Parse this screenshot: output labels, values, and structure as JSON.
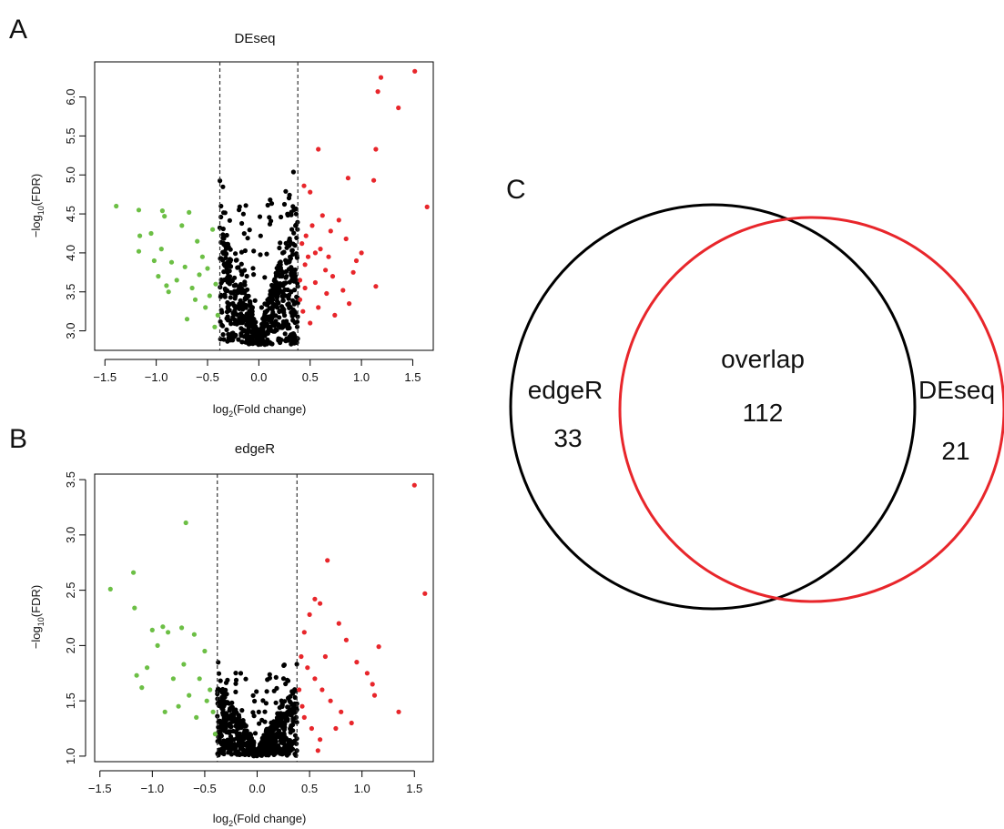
{
  "panels": {
    "a": {
      "letter": "A"
    },
    "b": {
      "letter": "B"
    },
    "c": {
      "letter": "C"
    }
  },
  "chart_data": [
    {
      "type": "scatter",
      "title": "DEseq",
      "xlabel": {
        "prefix": "log",
        "sub": "2",
        "suffix": "(Fold change)"
      },
      "ylabel": {
        "prefix": "−log",
        "sub": "10",
        "suffix": "(FDR)"
      },
      "xlim": [
        -1.6,
        1.7
      ],
      "ylim": [
        2.75,
        6.45
      ],
      "xticks": [
        -1.5,
        -1.0,
        -0.5,
        0.0,
        0.5,
        1.0,
        1.5
      ],
      "xtick_labels": [
        "−1.5",
        "−1.0",
        "−0.5",
        "0.0",
        "0.5",
        "1.0",
        "1.5"
      ],
      "yticks": [
        3.0,
        3.5,
        4.0,
        4.5,
        5.0,
        5.5,
        6.0
      ],
      "ytick_labels": [
        "3.0",
        "3.5",
        "4.0",
        "4.5",
        "5.0",
        "5.5",
        "6.0"
      ],
      "thresholds": [
        -0.38,
        0.38
      ],
      "grid": false,
      "series_colors": {
        "down": "#6cbf45",
        "up": "#e8262b",
        "ns": "#000000"
      },
      "up_points": [
        [
          1.52,
          6.33
        ],
        [
          1.19,
          6.25
        ],
        [
          1.16,
          6.07
        ],
        [
          1.36,
          5.86
        ],
        [
          0.58,
          5.33
        ],
        [
          1.14,
          5.33
        ],
        [
          0.87,
          4.96
        ],
        [
          1.12,
          4.93
        ],
        [
          1.64,
          4.59
        ],
        [
          0.44,
          4.86
        ],
        [
          0.5,
          4.78
        ],
        [
          1.14,
          3.57
        ],
        [
          0.42,
          4.12
        ],
        [
          0.46,
          4.22
        ],
        [
          0.52,
          4.35
        ],
        [
          0.6,
          4.05
        ],
        [
          0.7,
          4.28
        ],
        [
          0.78,
          4.42
        ],
        [
          0.85,
          4.18
        ],
        [
          0.95,
          3.9
        ],
        [
          0.65,
          3.78
        ],
        [
          0.55,
          3.62
        ],
        [
          0.45,
          3.55
        ],
        [
          0.48,
          3.95
        ],
        [
          0.72,
          3.7
        ],
        [
          0.82,
          3.52
        ],
        [
          0.92,
          3.75
        ],
        [
          1.0,
          4.0
        ],
        [
          0.62,
          4.48
        ],
        [
          0.4,
          3.4
        ],
        [
          0.43,
          3.25
        ],
        [
          0.5,
          3.1
        ],
        [
          0.58,
          3.3
        ],
        [
          0.66,
          3.48
        ],
        [
          0.74,
          3.2
        ],
        [
          0.88,
          3.35
        ],
        [
          0.4,
          3.65
        ],
        [
          0.45,
          3.85
        ],
        [
          0.55,
          4.0
        ],
        [
          0.68,
          3.95
        ]
      ],
      "down_points": [
        [
          -1.39,
          4.6
        ],
        [
          -1.17,
          4.55
        ],
        [
          -1.16,
          4.22
        ],
        [
          -1.17,
          4.02
        ],
        [
          -0.94,
          4.54
        ],
        [
          -0.92,
          4.47
        ],
        [
          -1.05,
          4.25
        ],
        [
          -0.95,
          4.05
        ],
        [
          -0.85,
          3.88
        ],
        [
          -0.75,
          4.35
        ],
        [
          -0.68,
          4.52
        ],
        [
          -0.6,
          4.15
        ],
        [
          -0.55,
          3.95
        ],
        [
          -0.5,
          3.8
        ],
        [
          -0.45,
          4.3
        ],
        [
          -0.42,
          3.6
        ],
        [
          -0.48,
          3.45
        ],
        [
          -0.58,
          3.72
        ],
        [
          -0.65,
          3.55
        ],
        [
          -0.72,
          3.82
        ],
        [
          -0.8,
          3.65
        ],
        [
          -0.88,
          3.5
        ],
        [
          -0.98,
          3.7
        ],
        [
          -1.02,
          3.9
        ],
        [
          -0.4,
          3.2
        ],
        [
          -0.43,
          3.05
        ],
        [
          -0.52,
          3.3
        ],
        [
          -0.62,
          3.4
        ],
        [
          -0.7,
          3.15
        ],
        [
          -0.9,
          3.58
        ]
      ],
      "ns_cloud": {
        "count": 700,
        "xrange": [
          -0.38,
          0.38
        ],
        "ybase": 2.82,
        "ytop": 5.5,
        "seed": 11
      }
    },
    {
      "type": "scatter",
      "title": "edgeR",
      "xlabel": {
        "prefix": "log",
        "sub": "2",
        "suffix": "(Fold change)"
      },
      "ylabel": {
        "prefix": "−log",
        "sub": "10",
        "suffix": "(FDR)"
      },
      "xlim": [
        -1.55,
        1.68
      ],
      "ylim": [
        0.95,
        3.55
      ],
      "xticks": [
        -1.5,
        -1.0,
        -0.5,
        0.0,
        0.5,
        1.0,
        1.5
      ],
      "xtick_labels": [
        "−1.5",
        "−1.0",
        "−0.5",
        "0.0",
        "0.5",
        "1.0",
        "1.5"
      ],
      "yticks": [
        1.0,
        1.5,
        2.0,
        2.5,
        3.0,
        3.5
      ],
      "ytick_labels": [
        "1.0",
        "1.5",
        "2.0",
        "2.5",
        "3.0",
        "3.5"
      ],
      "thresholds": [
        -0.38,
        0.38
      ],
      "grid": false,
      "series_colors": {
        "down": "#6cbf45",
        "up": "#e8262b",
        "ns": "#000000"
      },
      "up_points": [
        [
          1.5,
          3.45
        ],
        [
          1.6,
          2.47
        ],
        [
          0.67,
          2.77
        ],
        [
          1.16,
          1.99
        ],
        [
          1.35,
          1.4
        ],
        [
          0.55,
          2.42
        ],
        [
          0.6,
          2.38
        ],
        [
          0.5,
          2.28
        ],
        [
          0.78,
          2.2
        ],
        [
          0.85,
          2.05
        ],
        [
          0.95,
          1.85
        ],
        [
          1.05,
          1.75
        ],
        [
          1.1,
          1.65
        ],
        [
          1.12,
          1.55
        ],
        [
          0.45,
          2.12
        ],
        [
          0.42,
          1.9
        ],
        [
          0.48,
          1.8
        ],
        [
          0.55,
          1.7
        ],
        [
          0.62,
          1.6
        ],
        [
          0.7,
          1.5
        ],
        [
          0.8,
          1.4
        ],
        [
          0.9,
          1.3
        ],
        [
          0.45,
          1.35
        ],
        [
          0.52,
          1.25
        ],
        [
          0.6,
          1.15
        ],
        [
          0.4,
          1.6
        ],
        [
          0.43,
          1.45
        ],
        [
          0.58,
          1.05
        ],
        [
          0.75,
          1.25
        ],
        [
          0.65,
          1.9
        ]
      ],
      "down_points": [
        [
          -1.4,
          2.51
        ],
        [
          -1.18,
          2.66
        ],
        [
          -0.68,
          3.11
        ],
        [
          -1.17,
          2.34
        ],
        [
          -1.0,
          2.14
        ],
        [
          -0.9,
          2.17
        ],
        [
          -0.85,
          2.12
        ],
        [
          -0.72,
          2.16
        ],
        [
          -0.6,
          2.1
        ],
        [
          -0.95,
          2.0
        ],
        [
          -1.05,
          1.8
        ],
        [
          -0.8,
          1.7
        ],
        [
          -0.7,
          1.83
        ],
        [
          -0.55,
          1.7
        ],
        [
          -0.5,
          1.95
        ],
        [
          -0.45,
          1.6
        ],
        [
          -0.42,
          1.4
        ],
        [
          -0.48,
          1.5
        ],
        [
          -0.58,
          1.35
        ],
        [
          -0.65,
          1.55
        ],
        [
          -0.75,
          1.45
        ],
        [
          -0.88,
          1.4
        ],
        [
          -1.1,
          1.62
        ],
        [
          -1.15,
          1.73
        ],
        [
          -0.4,
          1.2
        ]
      ],
      "ns_cloud": {
        "count": 650,
        "xrange": [
          -0.38,
          0.38
        ],
        "ybase": 1.0,
        "ytop": 2.05,
        "seed": 23
      }
    },
    {
      "type": "venn",
      "sets": [
        {
          "name": "edgeR",
          "only": 33,
          "color": "#000000"
        },
        {
          "name": "DEseq",
          "only": 21,
          "color": "#e8262b"
        }
      ],
      "overlap": {
        "label": "overlap",
        "value": 112
      }
    }
  ]
}
